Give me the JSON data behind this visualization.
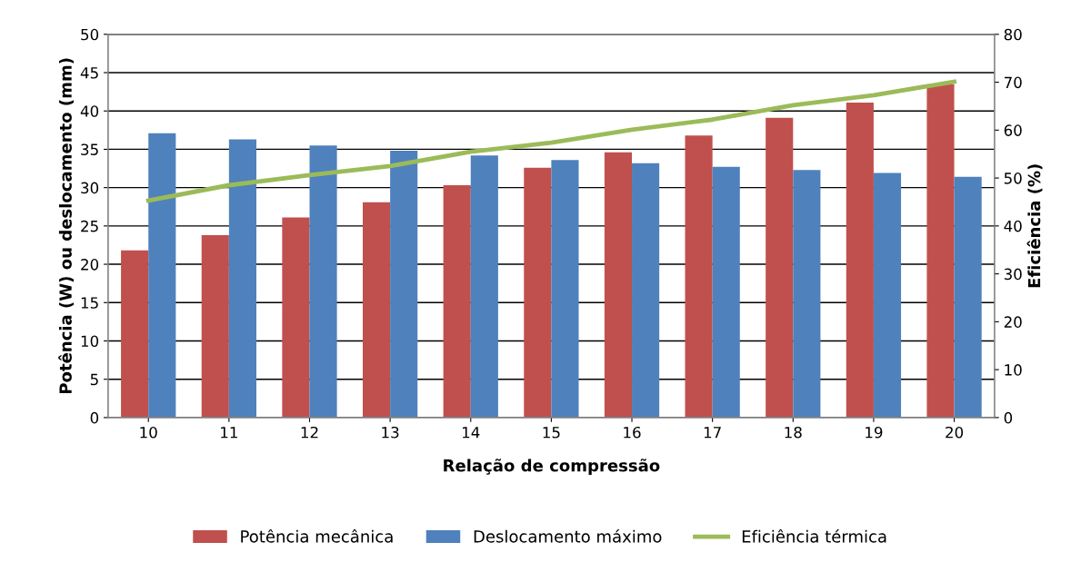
{
  "chart_data": {
    "type": "bar",
    "xlabel": "Relação de compressão",
    "ylabel": "Potência (W) ou deslocamento (mm)",
    "y2label": "Eficiência (%)",
    "categories": [
      "10",
      "11",
      "12",
      "13",
      "14",
      "15",
      "16",
      "17",
      "18",
      "19",
      "20"
    ],
    "series": [
      {
        "name": "Potência mecânica",
        "color": "#c0504d",
        "values": [
          21.8,
          23.8,
          26.1,
          28.1,
          30.3,
          32.6,
          34.6,
          36.8,
          39.1,
          41.1,
          43.5
        ]
      },
      {
        "name": "Deslocamento máximo",
        "color": "#4f81bd",
        "values": [
          37.1,
          36.3,
          35.5,
          34.8,
          34.2,
          33.6,
          33.2,
          32.7,
          32.3,
          31.9,
          31.4
        ]
      },
      {
        "name": "Eficiência térmica",
        "color": "#9bbb59",
        "type": "line",
        "axis": "y2",
        "values": [
          45.3,
          48.5,
          50.6,
          52.5,
          55.5,
          57.4,
          60.1,
          62.2,
          65.2,
          67.3,
          70.1
        ]
      }
    ],
    "ylim": [
      0,
      50
    ],
    "yticks": [
      0,
      5,
      10,
      15,
      20,
      25,
      30,
      35,
      40,
      45,
      50
    ],
    "y2lim": [
      0,
      80
    ],
    "y2ticks": [
      0,
      10,
      20,
      30,
      40,
      50,
      60,
      70,
      80
    ],
    "grid": "y",
    "legend": "bottom",
    "marker": "none"
  }
}
